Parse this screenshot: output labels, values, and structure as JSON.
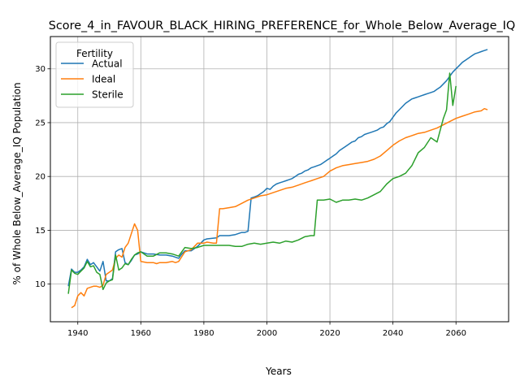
{
  "chart_data": {
    "type": "line",
    "title": "Score_4_in_FAVOUR_BLACK_HIRING_PREFERENCE_for_Whole_Below_Average_IQ",
    "xlabel": "Years",
    "ylabel": "% of Whole Below_Average_IQ Population",
    "xlim": [
      1931.3,
      2076.7
    ],
    "ylim": [
      6.5,
      33.0
    ],
    "xticks": [
      1940,
      1960,
      1980,
      2000,
      2020,
      2040,
      2060
    ],
    "yticks": [
      10,
      15,
      20,
      25,
      30
    ],
    "grid": true,
    "legend": {
      "title": "Fertility",
      "placement": "top-left"
    },
    "series": [
      {
        "name": "Actual",
        "color": "#1f77b4",
        "points": [
          [
            1937,
            9.8
          ],
          [
            1938,
            11.4
          ],
          [
            1939,
            11.1
          ],
          [
            1940,
            11.1
          ],
          [
            1941,
            11.3
          ],
          [
            1942,
            11.6
          ],
          [
            1943,
            12.3
          ],
          [
            1944,
            11.8
          ],
          [
            1945,
            12.0
          ],
          [
            1946,
            11.6
          ],
          [
            1947,
            11.2
          ],
          [
            1948,
            12.1
          ],
          [
            1949,
            10.3
          ],
          [
            1950,
            10.3
          ],
          [
            1951,
            10.5
          ],
          [
            1952,
            13.0
          ],
          [
            1953,
            13.2
          ],
          [
            1954,
            13.3
          ],
          [
            1955,
            12.0
          ],
          [
            1956,
            11.8
          ],
          [
            1957,
            12.2
          ],
          [
            1958,
            12.7
          ],
          [
            1959,
            12.8
          ],
          [
            1960,
            13.0
          ],
          [
            1962,
            12.8
          ],
          [
            1964,
            12.8
          ],
          [
            1966,
            12.7
          ],
          [
            1968,
            12.7
          ],
          [
            1970,
            12.6
          ],
          [
            1972,
            12.4
          ],
          [
            1973,
            12.8
          ],
          [
            1974,
            13.1
          ],
          [
            1976,
            13.1
          ],
          [
            1978,
            13.5
          ],
          [
            1980,
            14.1
          ],
          [
            1981,
            14.2
          ],
          [
            1984,
            14.3
          ],
          [
            1985,
            14.5
          ],
          [
            1988,
            14.5
          ],
          [
            1990,
            14.6
          ],
          [
            1992,
            14.8
          ],
          [
            1993,
            14.8
          ],
          [
            1994,
            14.9
          ],
          [
            1995,
            18.0
          ],
          [
            1996,
            18.1
          ],
          [
            1997,
            18.2
          ],
          [
            1998,
            18.4
          ],
          [
            1999,
            18.6
          ],
          [
            2000,
            18.9
          ],
          [
            2001,
            18.8
          ],
          [
            2002,
            19.1
          ],
          [
            2003,
            19.3
          ],
          [
            2004,
            19.4
          ],
          [
            2005,
            19.5
          ],
          [
            2006,
            19.6
          ],
          [
            2007,
            19.7
          ],
          [
            2008,
            19.8
          ],
          [
            2009,
            20.0
          ],
          [
            2010,
            20.2
          ],
          [
            2011,
            20.3
          ],
          [
            2012,
            20.5
          ],
          [
            2013,
            20.6
          ],
          [
            2014,
            20.8
          ],
          [
            2015,
            20.9
          ],
          [
            2016,
            21.0
          ],
          [
            2017,
            21.1
          ],
          [
            2018,
            21.3
          ],
          [
            2019,
            21.5
          ],
          [
            2020,
            21.7
          ],
          [
            2021,
            21.9
          ],
          [
            2022,
            22.1
          ],
          [
            2023,
            22.4
          ],
          [
            2024,
            22.6
          ],
          [
            2025,
            22.8
          ],
          [
            2026,
            23.0
          ],
          [
            2027,
            23.2
          ],
          [
            2028,
            23.3
          ],
          [
            2029,
            23.6
          ],
          [
            2030,
            23.7
          ],
          [
            2031,
            23.9
          ],
          [
            2032,
            24.0
          ],
          [
            2033,
            24.1
          ],
          [
            2034,
            24.2
          ],
          [
            2035,
            24.3
          ],
          [
            2036,
            24.5
          ],
          [
            2037,
            24.6
          ],
          [
            2038,
            24.9
          ],
          [
            2039,
            25.1
          ],
          [
            2040,
            25.5
          ],
          [
            2041,
            25.9
          ],
          [
            2042,
            26.2
          ],
          [
            2043,
            26.5
          ],
          [
            2044,
            26.8
          ],
          [
            2045,
            27.0
          ],
          [
            2046,
            27.2
          ],
          [
            2047,
            27.3
          ],
          [
            2048,
            27.4
          ],
          [
            2049,
            27.5
          ],
          [
            2050,
            27.6
          ],
          [
            2051,
            27.7
          ],
          [
            2052,
            27.8
          ],
          [
            2053,
            27.9
          ],
          [
            2054,
            28.1
          ],
          [
            2055,
            28.3
          ],
          [
            2056,
            28.6
          ],
          [
            2057,
            28.9
          ],
          [
            2058,
            29.3
          ],
          [
            2059,
            29.7
          ],
          [
            2060,
            30.0
          ],
          [
            2061,
            30.3
          ],
          [
            2062,
            30.6
          ],
          [
            2063,
            30.8
          ],
          [
            2064,
            31.0
          ],
          [
            2065,
            31.2
          ],
          [
            2066,
            31.4
          ],
          [
            2067,
            31.5
          ],
          [
            2068,
            31.6
          ],
          [
            2069,
            31.7
          ],
          [
            2070,
            31.8
          ]
        ]
      },
      {
        "name": "Ideal",
        "color": "#ff7f0e",
        "points": [
          [
            1938,
            7.8
          ],
          [
            1939,
            8.0
          ],
          [
            1940,
            8.9
          ],
          [
            1941,
            9.2
          ],
          [
            1942,
            8.9
          ],
          [
            1943,
            9.6
          ],
          [
            1944,
            9.7
          ],
          [
            1945,
            9.8
          ],
          [
            1946,
            9.8
          ],
          [
            1947,
            9.7
          ],
          [
            1948,
            9.9
          ],
          [
            1949,
            10.9
          ],
          [
            1950,
            11.1
          ],
          [
            1951,
            11.3
          ],
          [
            1952,
            12.4
          ],
          [
            1953,
            12.7
          ],
          [
            1954,
            12.5
          ],
          [
            1955,
            13.4
          ],
          [
            1956,
            13.8
          ],
          [
            1957,
            14.7
          ],
          [
            1958,
            15.6
          ],
          [
            1959,
            15.0
          ],
          [
            1960,
            12.1
          ],
          [
            1962,
            12.0
          ],
          [
            1964,
            12.0
          ],
          [
            1965,
            11.9
          ],
          [
            1966,
            12.0
          ],
          [
            1968,
            12.0
          ],
          [
            1970,
            12.1
          ],
          [
            1971,
            12.0
          ],
          [
            1972,
            12.1
          ],
          [
            1974,
            13.0
          ],
          [
            1976,
            13.2
          ],
          [
            1978,
            13.8
          ],
          [
            1980,
            13.8
          ],
          [
            1981,
            13.9
          ],
          [
            1983,
            13.8
          ],
          [
            1984,
            13.8
          ],
          [
            1985,
            17.0
          ],
          [
            1986,
            17.0
          ],
          [
            1988,
            17.1
          ],
          [
            1990,
            17.2
          ],
          [
            1992,
            17.5
          ],
          [
            1994,
            17.8
          ],
          [
            1996,
            18.0
          ],
          [
            1998,
            18.2
          ],
          [
            2000,
            18.3
          ],
          [
            2002,
            18.5
          ],
          [
            2004,
            18.7
          ],
          [
            2006,
            18.9
          ],
          [
            2008,
            19.0
          ],
          [
            2010,
            19.2
          ],
          [
            2012,
            19.4
          ],
          [
            2014,
            19.6
          ],
          [
            2016,
            19.8
          ],
          [
            2018,
            20.0
          ],
          [
            2020,
            20.5
          ],
          [
            2022,
            20.8
          ],
          [
            2024,
            21.0
          ],
          [
            2026,
            21.1
          ],
          [
            2028,
            21.2
          ],
          [
            2030,
            21.3
          ],
          [
            2032,
            21.4
          ],
          [
            2034,
            21.6
          ],
          [
            2036,
            21.9
          ],
          [
            2038,
            22.4
          ],
          [
            2040,
            22.9
          ],
          [
            2042,
            23.3
          ],
          [
            2044,
            23.6
          ],
          [
            2046,
            23.8
          ],
          [
            2048,
            24.0
          ],
          [
            2050,
            24.1
          ],
          [
            2052,
            24.3
          ],
          [
            2054,
            24.5
          ],
          [
            2056,
            24.8
          ],
          [
            2058,
            25.1
          ],
          [
            2060,
            25.4
          ],
          [
            2062,
            25.6
          ],
          [
            2064,
            25.8
          ],
          [
            2066,
            26.0
          ],
          [
            2068,
            26.1
          ],
          [
            2069,
            26.3
          ],
          [
            2070,
            26.2
          ]
        ]
      },
      {
        "name": "Sterile",
        "color": "#2ca02c",
        "points": [
          [
            1937,
            9.1
          ],
          [
            1938,
            11.3
          ],
          [
            1939,
            11.0
          ],
          [
            1940,
            10.9
          ],
          [
            1941,
            11.2
          ],
          [
            1942,
            11.5
          ],
          [
            1943,
            12.1
          ],
          [
            1944,
            11.6
          ],
          [
            1945,
            11.7
          ],
          [
            1946,
            11.1
          ],
          [
            1947,
            10.9
          ],
          [
            1948,
            9.5
          ],
          [
            1949,
            10.1
          ],
          [
            1950,
            10.3
          ],
          [
            1951,
            10.4
          ],
          [
            1952,
            12.7
          ],
          [
            1953,
            11.3
          ],
          [
            1954,
            11.5
          ],
          [
            1955,
            11.9
          ],
          [
            1956,
            11.8
          ],
          [
            1957,
            12.3
          ],
          [
            1958,
            12.7
          ],
          [
            1959,
            12.9
          ],
          [
            1960,
            13.0
          ],
          [
            1962,
            12.6
          ],
          [
            1964,
            12.6
          ],
          [
            1966,
            12.9
          ],
          [
            1968,
            12.9
          ],
          [
            1970,
            12.8
          ],
          [
            1972,
            12.6
          ],
          [
            1974,
            13.4
          ],
          [
            1976,
            13.3
          ],
          [
            1978,
            13.4
          ],
          [
            1980,
            13.6
          ],
          [
            1982,
            13.6
          ],
          [
            1984,
            13.6
          ],
          [
            1986,
            13.6
          ],
          [
            1988,
            13.6
          ],
          [
            1990,
            13.5
          ],
          [
            1992,
            13.5
          ],
          [
            1994,
            13.7
          ],
          [
            1996,
            13.8
          ],
          [
            1998,
            13.7
          ],
          [
            2000,
            13.8
          ],
          [
            2002,
            13.9
          ],
          [
            2004,
            13.8
          ],
          [
            2006,
            14.0
          ],
          [
            2008,
            13.9
          ],
          [
            2010,
            14.1
          ],
          [
            2012,
            14.4
          ],
          [
            2014,
            14.5
          ],
          [
            2015,
            14.5
          ],
          [
            2016,
            17.8
          ],
          [
            2018,
            17.8
          ],
          [
            2020,
            17.9
          ],
          [
            2022,
            17.6
          ],
          [
            2024,
            17.8
          ],
          [
            2026,
            17.8
          ],
          [
            2028,
            17.9
          ],
          [
            2030,
            17.8
          ],
          [
            2032,
            18.0
          ],
          [
            2034,
            18.3
          ],
          [
            2036,
            18.6
          ],
          [
            2038,
            19.3
          ],
          [
            2040,
            19.8
          ],
          [
            2042,
            20.0
          ],
          [
            2044,
            20.3
          ],
          [
            2046,
            21.0
          ],
          [
            2048,
            22.2
          ],
          [
            2050,
            22.7
          ],
          [
            2052,
            23.6
          ],
          [
            2054,
            23.2
          ],
          [
            2056,
            25.4
          ],
          [
            2057,
            26.2
          ],
          [
            2058,
            29.6
          ],
          [
            2059,
            26.6
          ],
          [
            2060,
            28.4
          ]
        ]
      }
    ]
  }
}
